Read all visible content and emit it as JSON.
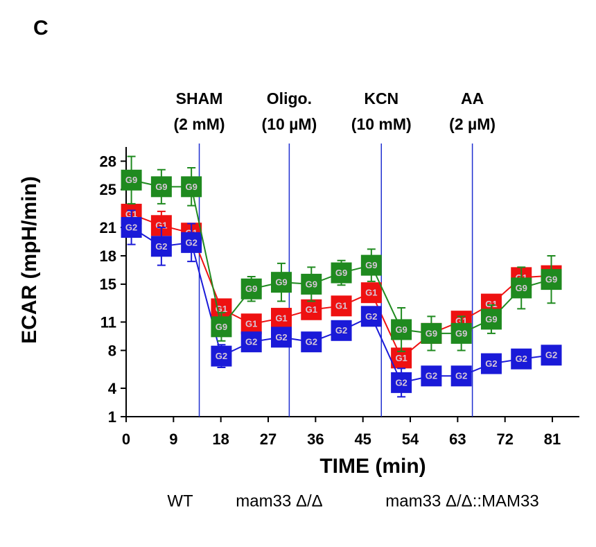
{
  "chart_data": {
    "type": "line",
    "panel_label": "C",
    "xlabel": "TIME (min)",
    "ylabel": "ECAR (mpH/min)",
    "xlim": [
      0,
      86
    ],
    "ylim": [
      1,
      29.5
    ],
    "xticks": [
      0,
      9,
      18,
      27,
      36,
      45,
      54,
      63,
      72,
      81
    ],
    "yticks": [
      1,
      4,
      8,
      11,
      15,
      18,
      21,
      25,
      28
    ],
    "x": [
      1,
      6.7,
      12.4,
      18.1,
      23.8,
      29.5,
      35.2,
      40.9,
      46.6,
      52.3,
      58,
      63.7,
      69.4,
      75.1,
      80.8
    ],
    "injections": [
      {
        "name": "SHAM",
        "dose": "(2 mM)",
        "x": 13.9
      },
      {
        "name": "Oligo.",
        "dose": "(10 µM)",
        "x": 31
      },
      {
        "name": "KCN",
        "dose": "(10 mM)",
        "x": 48.5
      },
      {
        "name": "AA",
        "dose": "(2 µM)",
        "x": 65.8
      }
    ],
    "injection_color": "#1f2fd0",
    "series": [
      {
        "name": "G1",
        "color": "#ee1111",
        "values": [
          22.4,
          21.2,
          20.4,
          12.4,
          10.8,
          11.4,
          12.3,
          12.7,
          14.1,
          7.2,
          9.8,
          11.1,
          12.9,
          15.7,
          15.9
        ],
        "errors": [
          1,
          1.5,
          1,
          1,
          0.8,
          0.8,
          0.8,
          0.8,
          1,
          1,
          0.8,
          0.8,
          0.8,
          1,
          1
        ]
      },
      {
        "name": "G2",
        "color": "#1a1ad8",
        "values": [
          21.0,
          19.0,
          19.4,
          7.4,
          8.9,
          9.4,
          8.9,
          10.1,
          11.6,
          4.6,
          5.3,
          5.3,
          6.6,
          7.1,
          7.5
        ],
        "errors": [
          1.8,
          2,
          2,
          1.2,
          0.8,
          0.8,
          0.8,
          0.8,
          1,
          1.5,
          0.8,
          0.6,
          0.6,
          0.6,
          0.6
        ]
      },
      {
        "name": "G9",
        "color": "#1f8a1f",
        "values": [
          26.0,
          25.3,
          25.3,
          10.5,
          14.5,
          15.2,
          15.0,
          16.2,
          17.0,
          10.2,
          9.8,
          9.8,
          11.3,
          14.6,
          15.5
        ],
        "errors": [
          2.5,
          1.8,
          2.0,
          1.5,
          1.3,
          2.0,
          1.8,
          1.3,
          1.7,
          2.3,
          1.8,
          1.8,
          1.5,
          2.2,
          2.5
        ]
      }
    ],
    "footer_labels": [
      "WT",
      "mam33 Δ/Δ",
      "mam33 Δ/Δ::MAM33"
    ]
  }
}
